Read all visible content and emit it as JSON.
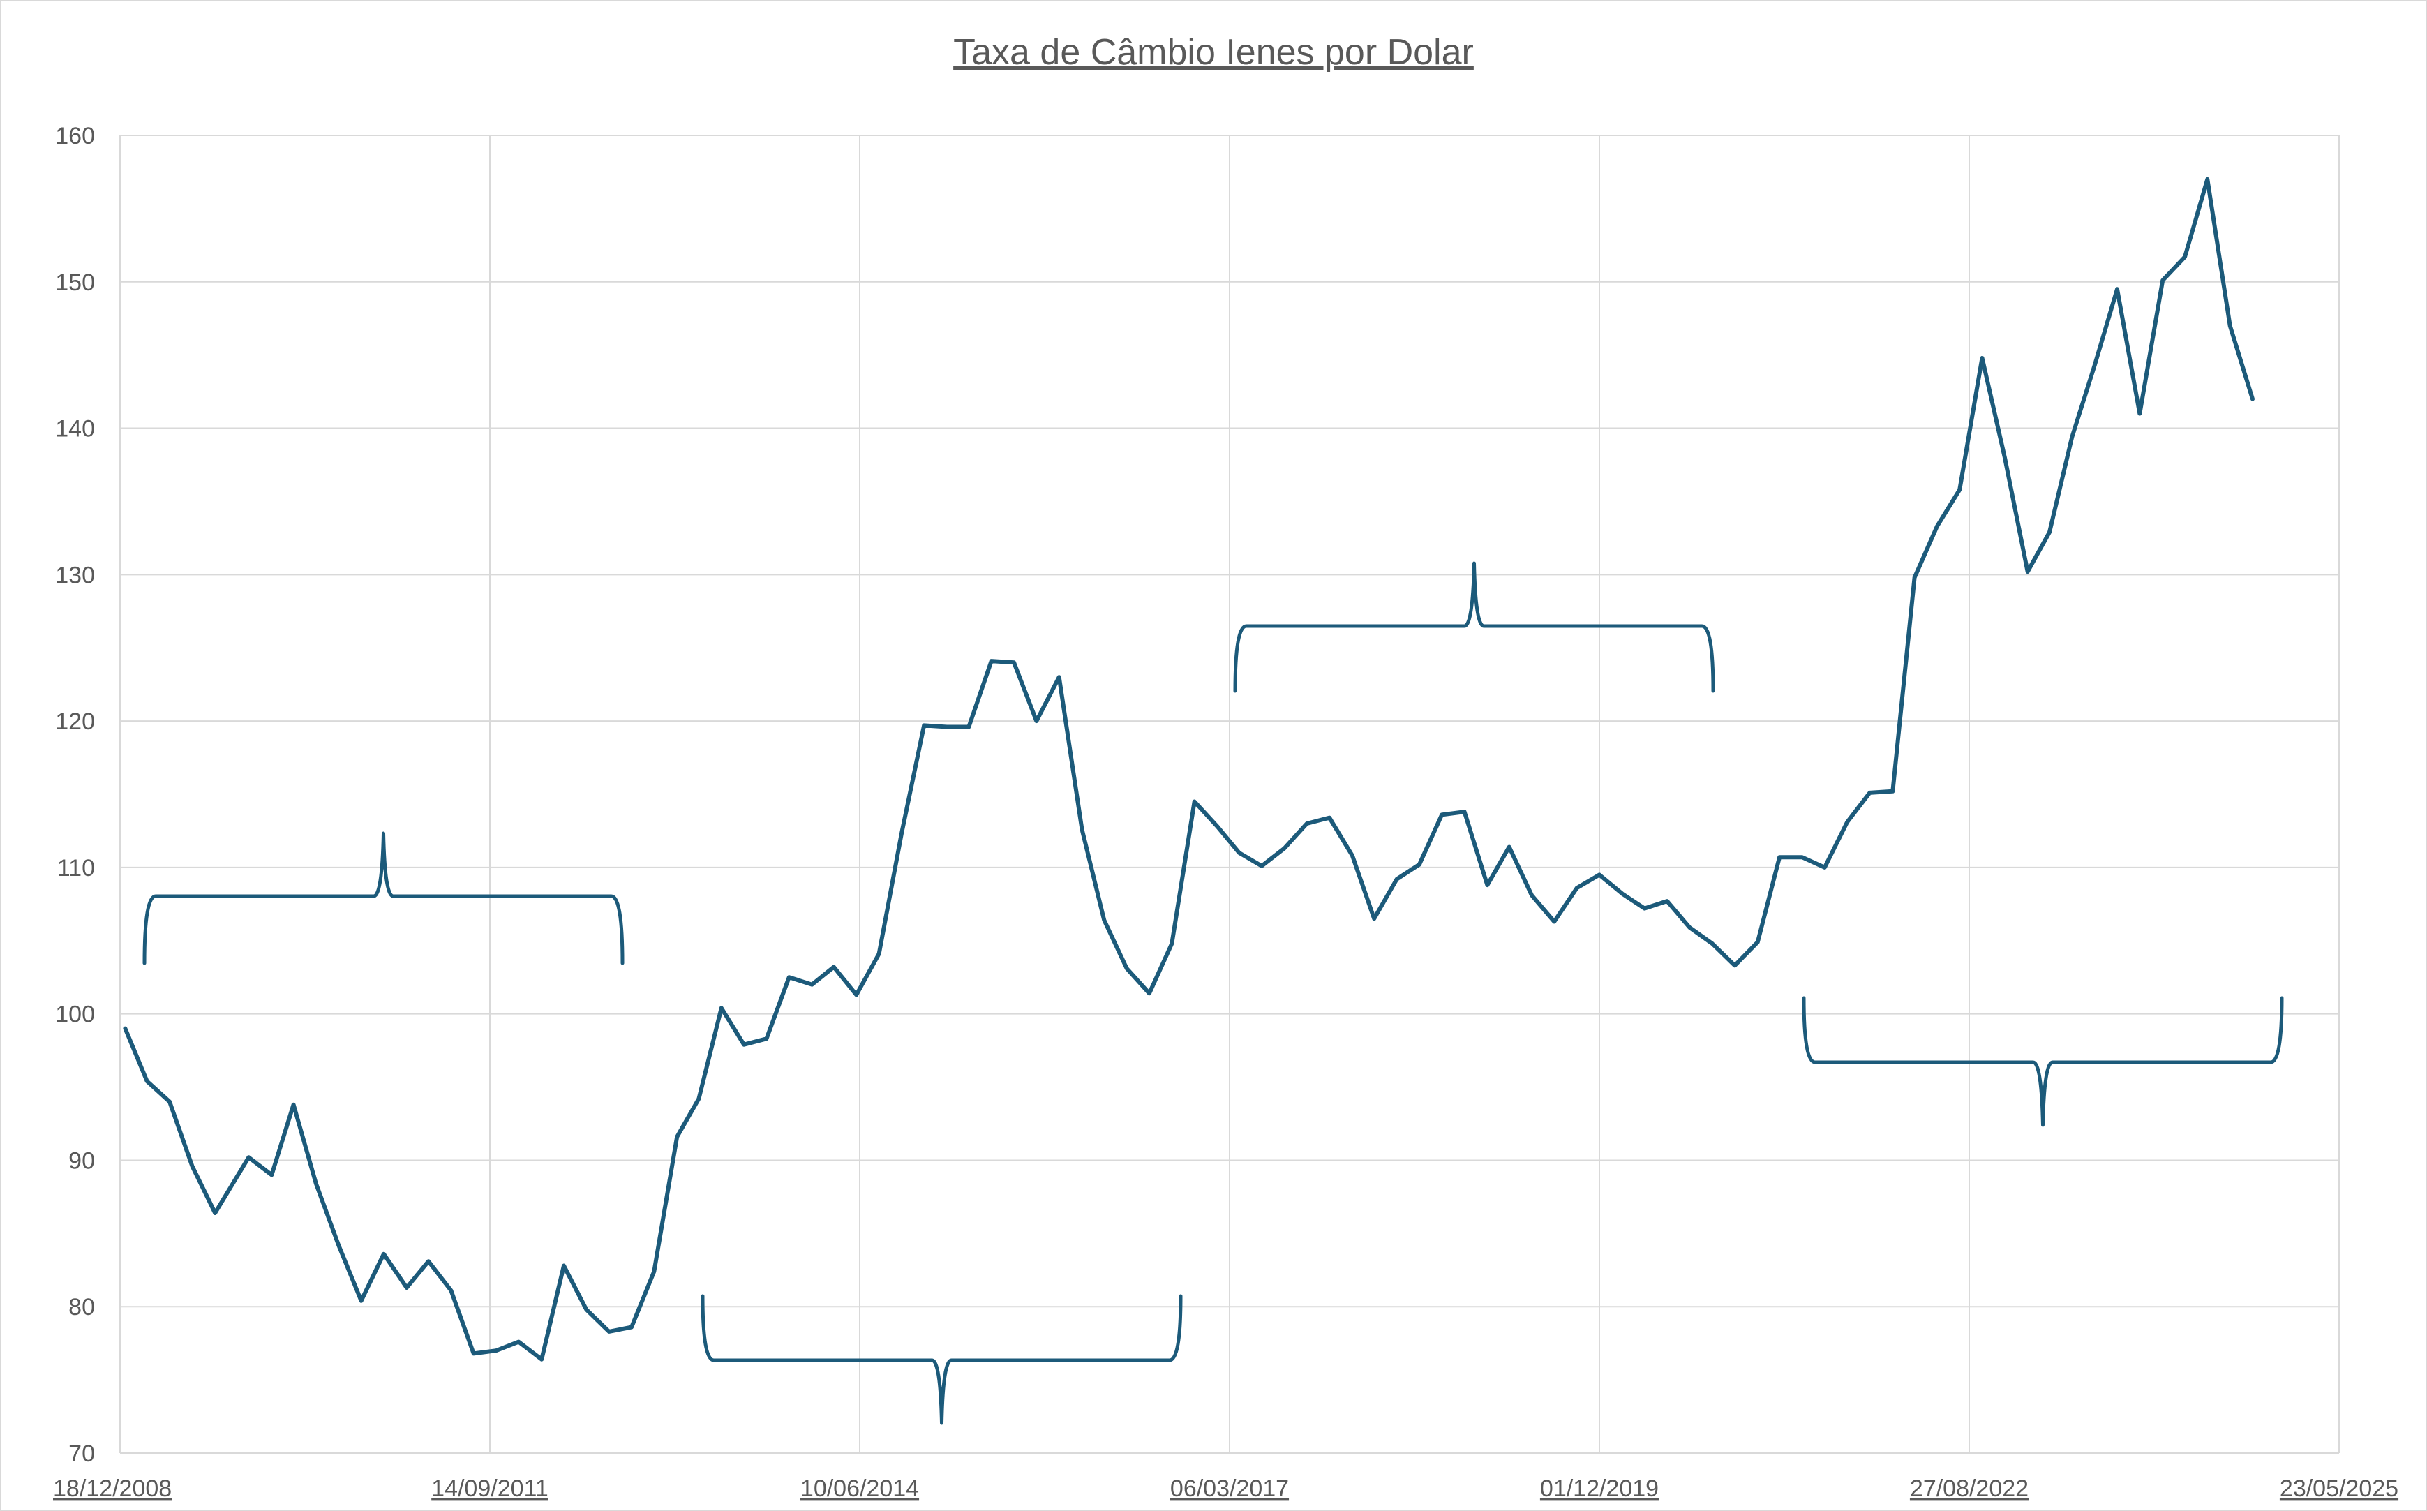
{
  "chart_data": {
    "type": "line",
    "title": "Taxa de Câmbio Ienes por Dolar",
    "xlabel": "",
    "ylabel": "",
    "ylim": [
      70,
      160
    ],
    "yticks": [
      70,
      80,
      90,
      100,
      110,
      120,
      130,
      140,
      150,
      160
    ],
    "xlim": [
      "18/12/2008",
      "23/05/2025"
    ],
    "xticks": [
      "18/12/2008",
      "14/09/2011",
      "10/06/2014",
      "06/03/2017",
      "01/12/2019",
      "27/08/2022",
      "23/05/2025"
    ],
    "grid": true,
    "legend": "none",
    "line_color": "#1c5a7a",
    "series": [
      {
        "x": [
          "01/01/2009",
          "01/03/2009",
          "01/05/2009",
          "01/07/2009",
          "01/09/2009",
          "01/12/2009",
          "01/02/2010",
          "01/04/2010",
          "01/06/2010",
          "01/08/2010",
          "01/10/2010",
          "01/12/2010",
          "01/02/2011",
          "01/04/2011",
          "01/06/2011",
          "01/08/2011",
          "01/10/2011",
          "01/12/2011",
          "01/02/2012",
          "01/04/2012",
          "01/06/2012",
          "01/08/2012",
          "01/10/2012",
          "01/12/2012",
          "01/02/2013",
          "01/04/2013",
          "01/06/2013",
          "01/08/2013",
          "01/10/2013",
          "01/12/2013",
          "01/02/2014",
          "01/04/2014",
          "01/06/2014",
          "01/08/2014",
          "01/10/2014",
          "01/12/2014",
          "01/02/2015",
          "01/04/2015",
          "01/06/2015",
          "01/08/2015",
          "01/10/2015",
          "01/12/2015",
          "01/02/2016",
          "01/04/2016",
          "01/06/2016",
          "01/08/2016",
          "01/10/2016",
          "01/12/2016",
          "01/02/2017",
          "01/04/2017",
          "01/06/2017",
          "01/08/2017",
          "01/10/2017",
          "01/12/2017",
          "01/02/2018",
          "01/04/2018",
          "01/06/2018",
          "01/08/2018",
          "01/10/2018",
          "01/12/2018",
          "01/02/2019",
          "01/04/2019",
          "01/06/2019",
          "01/08/2019",
          "01/10/2019",
          "01/12/2019",
          "01/02/2020",
          "01/04/2020",
          "01/06/2020",
          "01/08/2020",
          "01/10/2020",
          "01/12/2020",
          "01/02/2021",
          "01/04/2021",
          "01/06/2021",
          "01/08/2021",
          "01/10/2021",
          "01/12/2021",
          "01/02/2022",
          "01/04/2022",
          "01/06/2022",
          "01/08/2022",
          "01/10/2022",
          "01/12/2022",
          "01/02/2023",
          "01/04/2023",
          "01/06/2023",
          "01/08/2023",
          "01/10/2023",
          "01/12/2023",
          "01/02/2024",
          "01/04/2024",
          "01/06/2024",
          "01/08/2024",
          "01/10/2024"
        ],
        "values": [
          99.0,
          95.4,
          94.0,
          89.6,
          86.4,
          90.2,
          89.0,
          93.8,
          88.4,
          84.2,
          80.4,
          83.6,
          81.3,
          83.1,
          81.1,
          76.8,
          77.0,
          77.6,
          76.4,
          82.8,
          79.8,
          78.3,
          78.6,
          82.4,
          91.6,
          94.2,
          100.4,
          97.9,
          98.3,
          102.5,
          102.0,
          103.2,
          101.3,
          104.1,
          112.3,
          119.7,
          119.6,
          119.6,
          124.1,
          124.0,
          120.0,
          123.0,
          112.6,
          106.4,
          103.1,
          101.4,
          104.8,
          114.5,
          112.8,
          111.0,
          110.1,
          111.3,
          113.0,
          113.4,
          110.8,
          106.5,
          109.2,
          110.2,
          113.6,
          113.8,
          108.8,
          111.4,
          108.1,
          106.3,
          108.6,
          109.5,
          108.2,
          107.2,
          107.7,
          105.9,
          104.8,
          103.3,
          104.9,
          110.7,
          110.7,
          110.0,
          113.1,
          115.1,
          115.2,
          129.8,
          133.3,
          135.8,
          144.8,
          138.0,
          130.2,
          132.9,
          139.4,
          144.3,
          149.5,
          141.0,
          150.1,
          151.7,
          157.0,
          147.0,
          142.0
        ]
      }
    ]
  }
}
